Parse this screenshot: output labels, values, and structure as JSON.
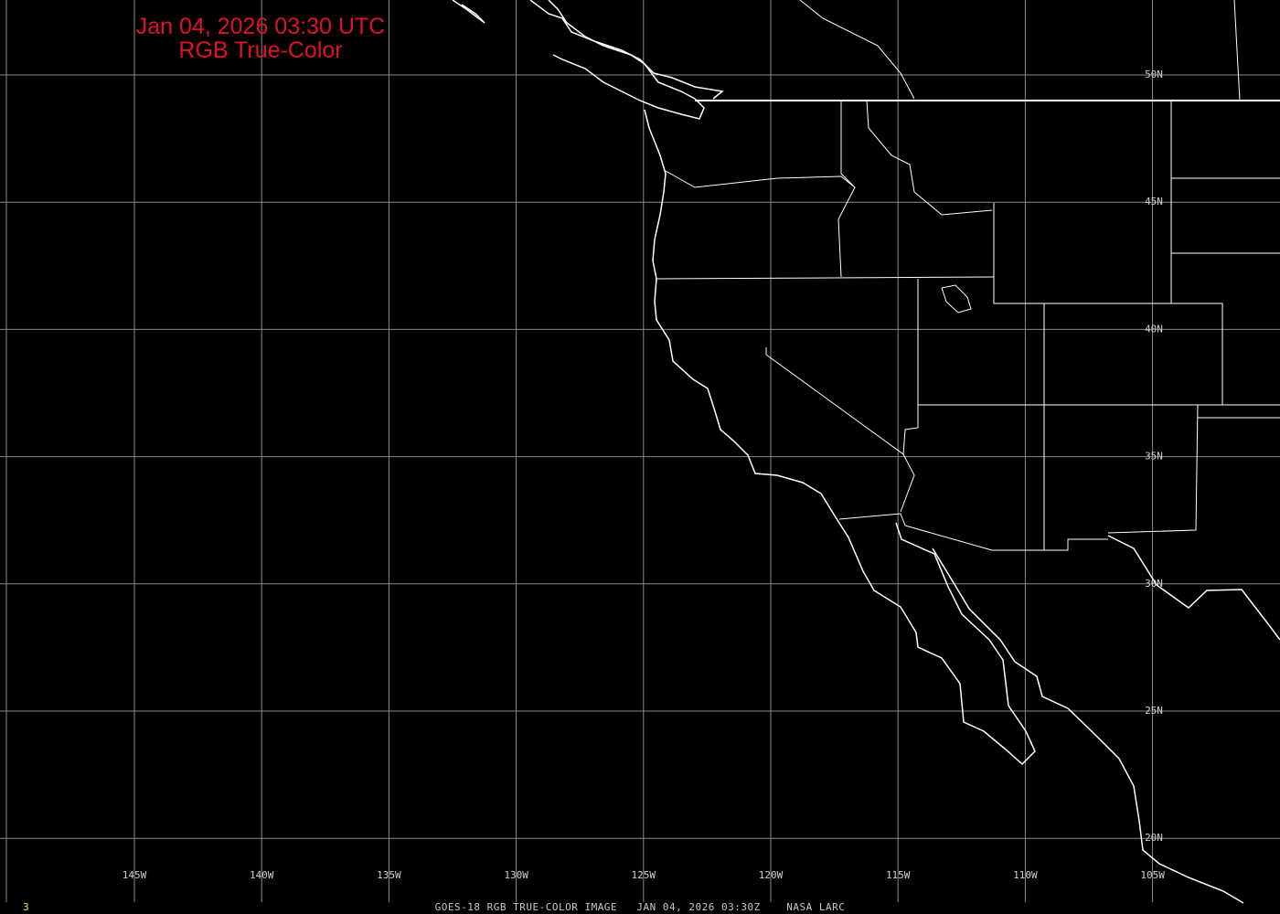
{
  "title": {
    "line1": "Jan 04, 2026 03:30 UTC",
    "line2": "RGB True-Color",
    "color": "#e0102a"
  },
  "footer": {
    "caption": "GOES-18 RGB TRUE-COLOR IMAGE   JAN 04, 2026 03:30Z    NASA LARC",
    "frame_number": "3"
  },
  "grid": {
    "longitude_labels": [
      "145W",
      "140W",
      "135W",
      "130W",
      "125W",
      "120W",
      "115W",
      "110W",
      "105W"
    ],
    "latitude_labels": [
      "50N",
      "45N",
      "40N",
      "35N",
      "30N",
      "25N",
      "20N"
    ],
    "line_color": "#8a8a8a",
    "label_color": "#d0d0d0"
  },
  "map": {
    "background": "#000000",
    "outline_color": "#ffffff"
  }
}
